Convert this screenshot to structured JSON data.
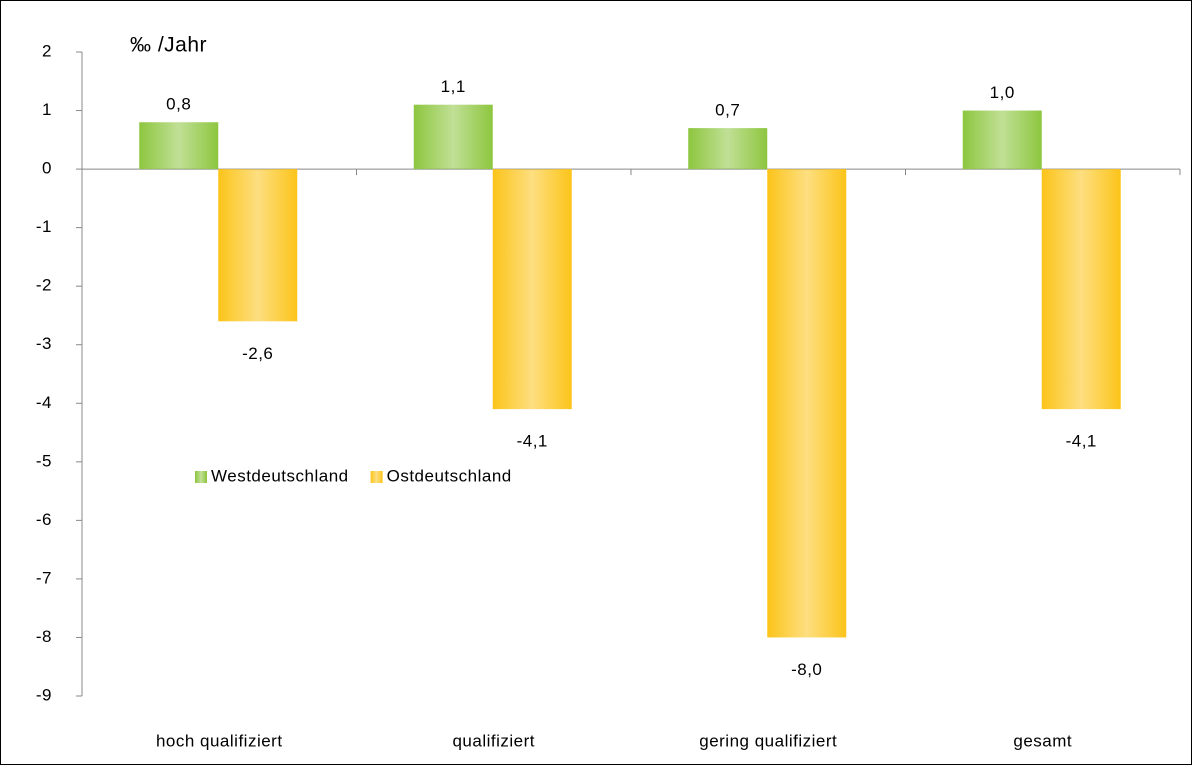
{
  "chart_data": {
    "type": "bar",
    "ylabel": "‰ /Jahr",
    "categories": [
      "hoch qualifiziert",
      "qualifiziert",
      "gering qualifiziert",
      "gesamt"
    ],
    "series": [
      {
        "name": "Westdeutschland",
        "color": "#8dc63f",
        "values": [
          0.8,
          1.1,
          0.7,
          1.0
        ],
        "value_labels": [
          "0,8",
          "1,1",
          "0,7",
          "1,0"
        ]
      },
      {
        "name": "Ostdeutschland",
        "color": "#fcc419",
        "values": [
          -2.6,
          -4.1,
          -8.0,
          -4.1
        ],
        "value_labels": [
          "-2,6",
          "-4,1",
          "-8,0",
          "-4,1"
        ]
      }
    ],
    "ylim": [
      -9,
      2
    ],
    "yticks": [
      -9,
      -8,
      -7,
      -6,
      -5,
      -4,
      -3,
      -2,
      -1,
      0,
      1,
      2
    ],
    "legend": "center-left"
  }
}
